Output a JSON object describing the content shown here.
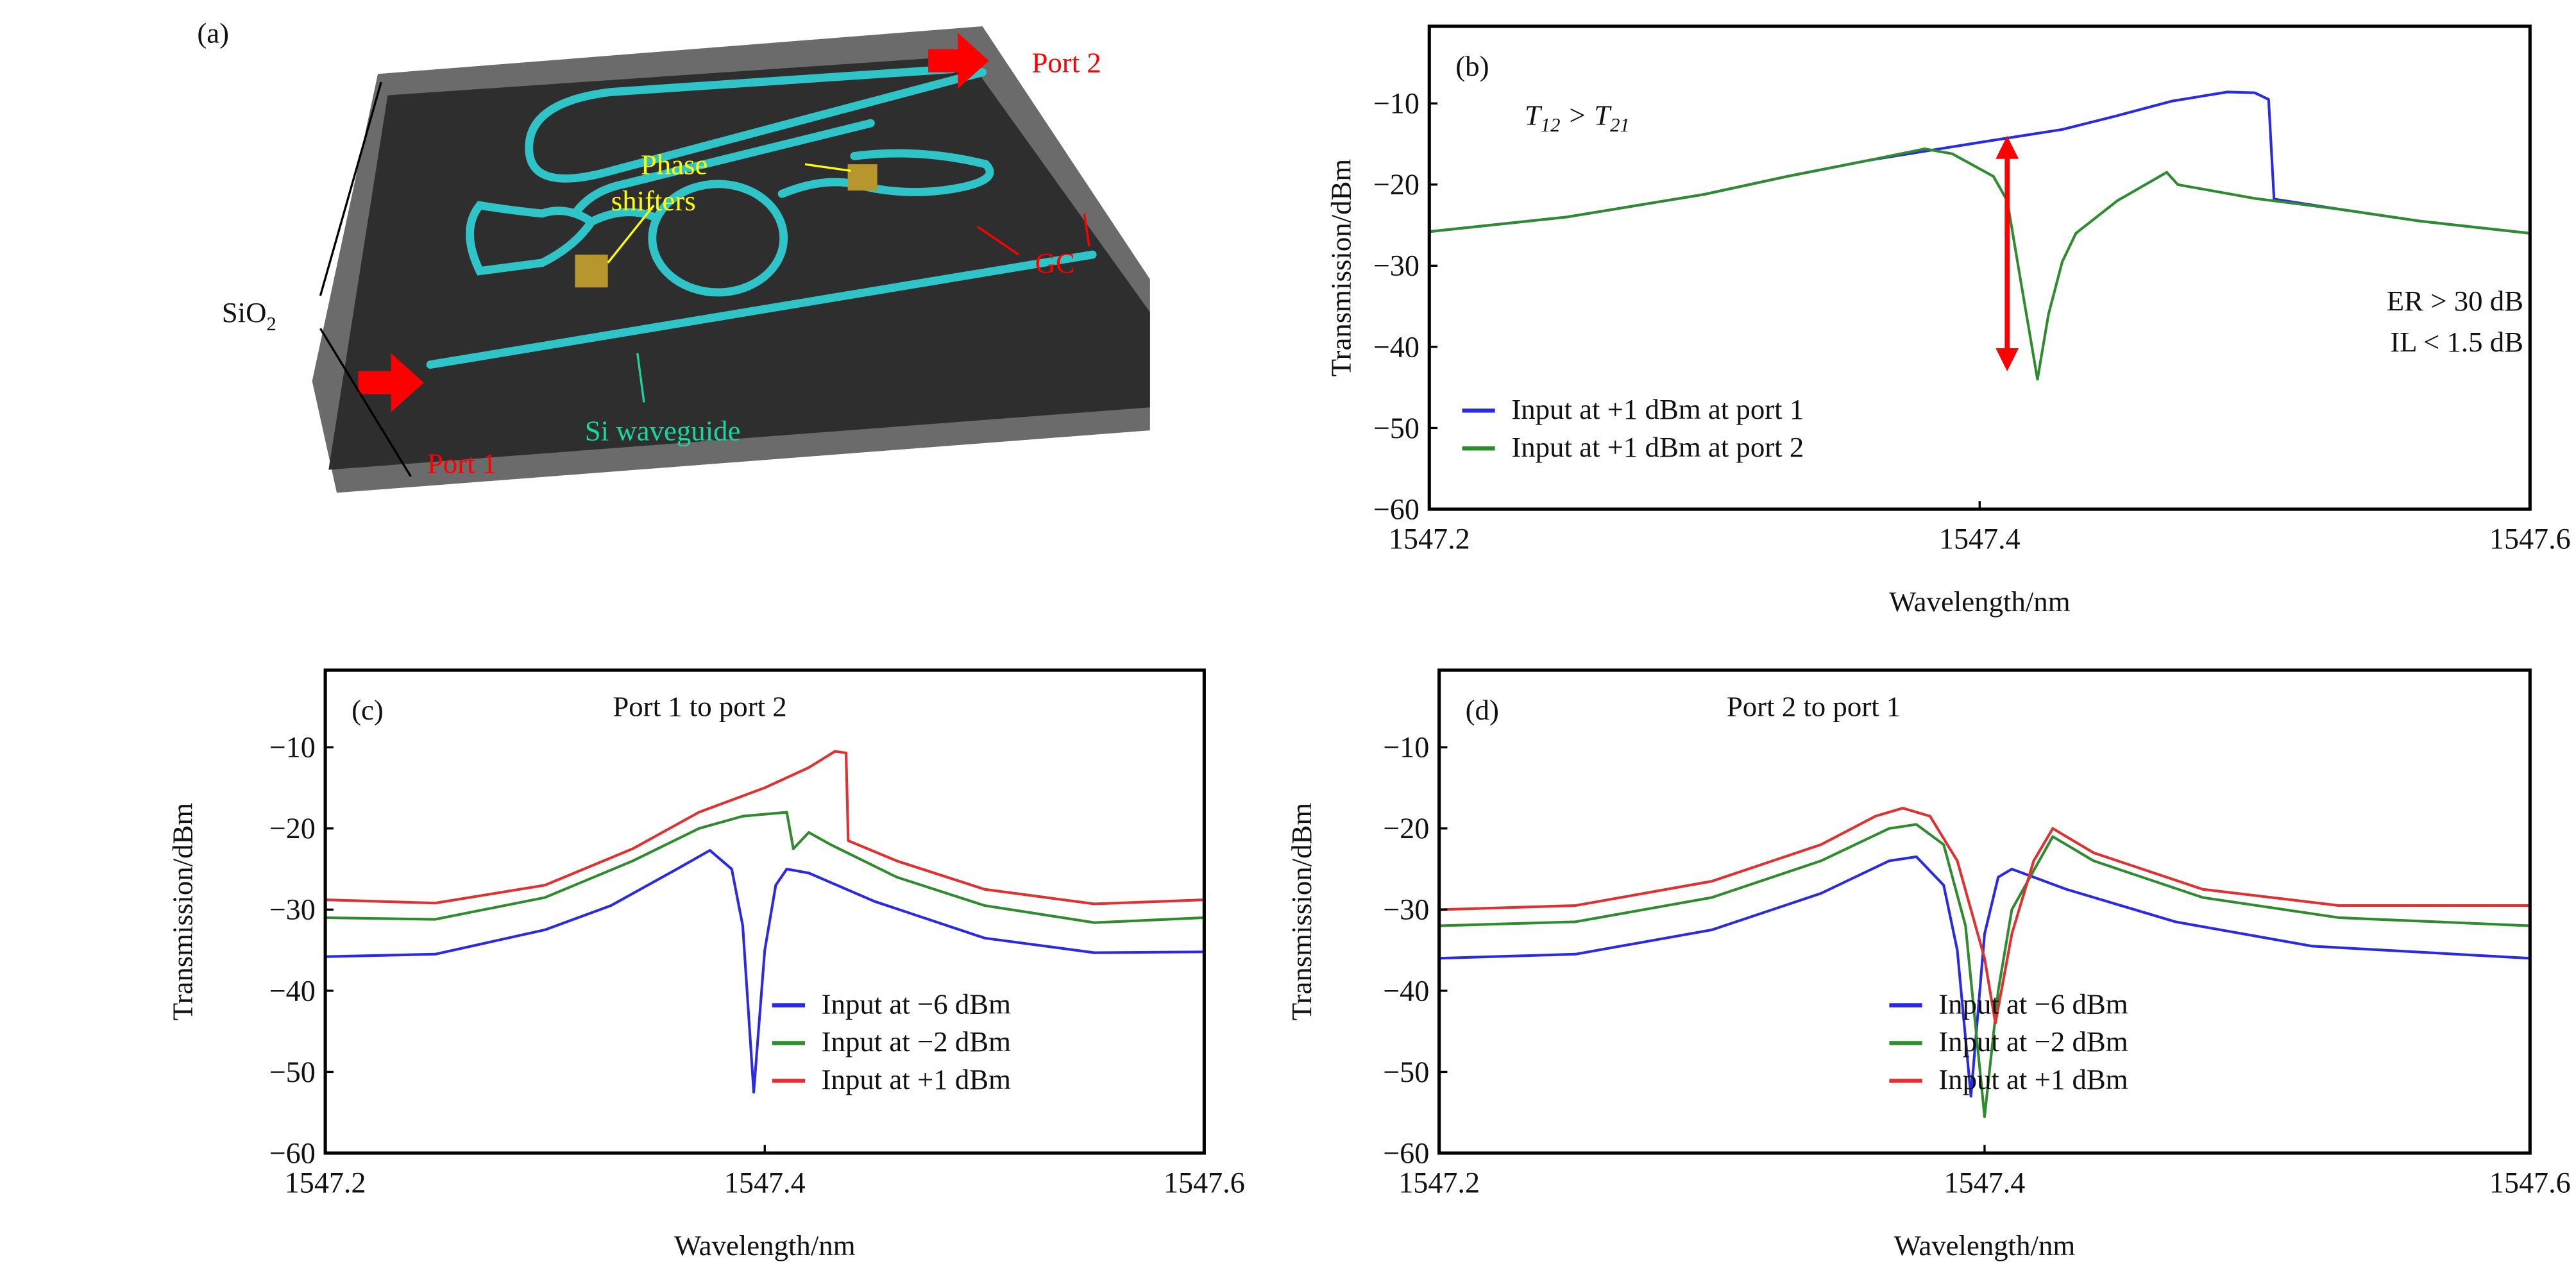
{
  "figure_a": {
    "panel_label": "(a)",
    "sio2": "SiO",
    "sio2_sub": "2",
    "phase": "Phase",
    "shifters": "shifters",
    "gc": "GC",
    "port1": "Port 1",
    "port2": "Port 2",
    "si_waveguide": "Si waveguide",
    "colors": {
      "waveguide": "#2fc4c8",
      "chip_top": "#2e2e2e",
      "chip_side": "#6b6b6b",
      "arrow": "#ff0000",
      "shifter": "#b8962e",
      "label_yellow": "#ffff00",
      "label_green": "#19d6a0"
    }
  },
  "chart_data": [
    {
      "type": "line",
      "panel_label": "(b)",
      "title": "",
      "xlabel": "Wavelength/nm",
      "ylabel": "Transmission/dBm",
      "xlim": [
        1547.2,
        1547.6
      ],
      "ylim": [
        -60,
        -0.5
      ],
      "xticks": [
        1547.2,
        1547.4,
        1547.6
      ],
      "xtick_labels": [
        "1547.2",
        "1547.4",
        "1547.6"
      ],
      "yticks": [
        -10,
        -20,
        -30,
        -40,
        -50,
        -60
      ],
      "ytick_labels": [
        "−10",
        "−20",
        "−30",
        "−40",
        "−50",
        "−60"
      ],
      "annotations": {
        "t_relation": "T",
        "t12_sub": "12",
        "gt": " > ",
        "t21_sub": "21",
        "er": "ER > 30 dB",
        "il": "IL < 1.5 dB",
        "arrow_x": 1547.41,
        "arrow_y": [
          -14,
          -43
        ]
      },
      "legend_position": "bottom-left",
      "series": [
        {
          "name": "Input at +1 dBm at port 1",
          "color": "#2a2ae6",
          "x": [
            1547.2,
            1547.25,
            1547.3,
            1547.33,
            1547.36,
            1547.4,
            1547.43,
            1547.45,
            1547.47,
            1547.49,
            1547.5,
            1547.505,
            1547.507,
            1547.53,
            1547.56,
            1547.6
          ],
          "y": [
            -25.8,
            -24,
            -21.2,
            -19,
            -17,
            -14.8,
            -13.2,
            -11.5,
            -9.7,
            -8.6,
            -8.7,
            -9.5,
            -21.8,
            -23,
            -24.5,
            -26
          ]
        },
        {
          "name": "Input at +1 dBm at port 2",
          "color": "#2e8b2e",
          "x": [
            1547.2,
            1547.25,
            1547.3,
            1547.33,
            1547.36,
            1547.38,
            1547.39,
            1547.405,
            1547.41,
            1547.415,
            1547.421,
            1547.425,
            1547.43,
            1547.435,
            1547.45,
            1547.468,
            1547.472,
            1547.5,
            1547.53,
            1547.56,
            1547.6
          ],
          "y": [
            -25.8,
            -24,
            -21.2,
            -19,
            -17,
            -15.6,
            -16.2,
            -19,
            -22,
            -32,
            -44,
            -36,
            -29.5,
            -26,
            -22,
            -18.5,
            -20,
            -21.7,
            -23,
            -24.5,
            -26
          ]
        }
      ]
    },
    {
      "type": "line",
      "panel_label": "(c)",
      "title": "Port 1 to port 2",
      "xlabel": "Wavelength/nm",
      "ylabel": "Transmission/dBm",
      "xlim": [
        1547.2,
        1547.6
      ],
      "ylim": [
        -60,
        -0.5
      ],
      "xticks": [
        1547.2,
        1547.4,
        1547.6
      ],
      "xtick_labels": [
        "1547.2",
        "1547.4",
        "1547.6"
      ],
      "yticks": [
        -10,
        -20,
        -30,
        -40,
        -50,
        -60
      ],
      "ytick_labels": [
        "−10",
        "−20",
        "−30",
        "−40",
        "−50",
        "−60"
      ],
      "legend_position": "bottom-right",
      "series": [
        {
          "name": "Input at −6 dBm",
          "color": "#2a2ae6",
          "x": [
            1547.2,
            1547.25,
            1547.3,
            1547.33,
            1547.36,
            1547.375,
            1547.385,
            1547.39,
            1547.395,
            1547.4,
            1547.405,
            1547.41,
            1547.42,
            1547.45,
            1547.5,
            1547.55,
            1547.6
          ],
          "y": [
            -35.8,
            -35.5,
            -32.5,
            -29.5,
            -25,
            -22.7,
            -25,
            -32,
            -52.5,
            -35,
            -27,
            -25,
            -25.5,
            -29,
            -33.5,
            -35.3,
            -35.2
          ]
        },
        {
          "name": "Input at −2 dBm",
          "color": "#2e8b2e",
          "x": [
            1547.2,
            1547.25,
            1547.3,
            1547.34,
            1547.37,
            1547.39,
            1547.41,
            1547.413,
            1547.42,
            1547.43,
            1547.46,
            1547.5,
            1547.55,
            1547.6
          ],
          "y": [
            -31,
            -31.2,
            -28.5,
            -24,
            -20,
            -18.5,
            -18,
            -22.5,
            -20.5,
            -22,
            -26,
            -29.5,
            -31.6,
            -31
          ]
        },
        {
          "name": "Input at +1 dBm",
          "color": "#e03030",
          "x": [
            1547.2,
            1547.25,
            1547.3,
            1547.34,
            1547.37,
            1547.4,
            1547.42,
            1547.432,
            1547.437,
            1547.438,
            1547.46,
            1547.5,
            1547.55,
            1547.6
          ],
          "y": [
            -28.8,
            -29.2,
            -27,
            -22.5,
            -18,
            -15,
            -12.5,
            -10.5,
            -10.7,
            -21.5,
            -24,
            -27.5,
            -29.3,
            -28.8
          ]
        }
      ]
    },
    {
      "type": "line",
      "panel_label": "(d)",
      "title": "Port 2 to port 1",
      "xlabel": "Wavelength/nm",
      "ylabel": "Transmission/dBm",
      "xlim": [
        1547.2,
        1547.6
      ],
      "ylim": [
        -60,
        -0.5
      ],
      "xticks": [
        1547.2,
        1547.4,
        1547.6
      ],
      "xtick_labels": [
        "1547.2",
        "1547.4",
        "1547.6"
      ],
      "yticks": [
        -10,
        -20,
        -30,
        -40,
        -50,
        -60
      ],
      "ytick_labels": [
        "−10",
        "−20",
        "−30",
        "−40",
        "−50",
        "−60"
      ],
      "legend_position": "bottom-right",
      "series": [
        {
          "name": "Input at −6 dBm",
          "color": "#2a2ae6",
          "x": [
            1547.2,
            1547.25,
            1547.3,
            1547.34,
            1547.365,
            1547.375,
            1547.385,
            1547.39,
            1547.395,
            1547.4,
            1547.405,
            1547.41,
            1547.43,
            1547.47,
            1547.52,
            1547.6
          ],
          "y": [
            -36,
            -35.5,
            -32.5,
            -28,
            -24,
            -23.5,
            -27,
            -35,
            -53,
            -33,
            -26,
            -25,
            -27.5,
            -31.5,
            -34.5,
            -36
          ]
        },
        {
          "name": "Input at −2 dBm",
          "color": "#2e8b2e",
          "x": [
            1547.2,
            1547.25,
            1547.3,
            1547.34,
            1547.365,
            1547.375,
            1547.385,
            1547.393,
            1547.4,
            1547.405,
            1547.41,
            1547.425,
            1547.44,
            1547.48,
            1547.53,
            1547.6
          ],
          "y": [
            -32,
            -31.5,
            -28.5,
            -24,
            -20,
            -19.5,
            -22,
            -32,
            -55.5,
            -40,
            -30,
            -21,
            -24,
            -28.5,
            -31,
            -32
          ]
        },
        {
          "name": "Input at +1 dBm",
          "color": "#e03030",
          "x": [
            1547.2,
            1547.25,
            1547.3,
            1547.34,
            1547.36,
            1547.37,
            1547.38,
            1547.39,
            1547.4,
            1547.404,
            1547.41,
            1547.418,
            1547.425,
            1547.44,
            1547.48,
            1547.53,
            1547.6
          ],
          "y": [
            -30,
            -29.5,
            -26.5,
            -22,
            -18.5,
            -17.5,
            -18.5,
            -24,
            -36,
            -44,
            -33,
            -24,
            -20,
            -23,
            -27.5,
            -29.5,
            -29.5
          ]
        }
      ]
    }
  ]
}
